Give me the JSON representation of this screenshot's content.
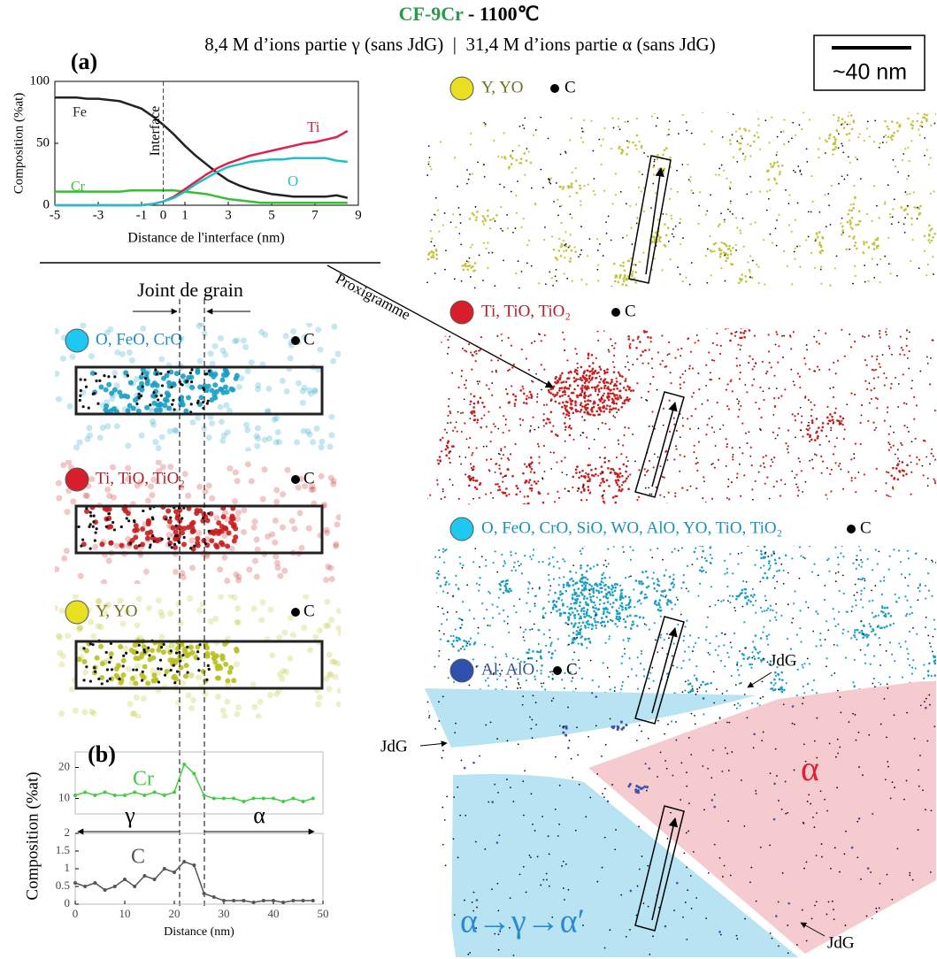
{
  "figure": {
    "title_sample": "CF-9Cr",
    "title_rest": "- 1100℃",
    "subtitle": "8,4 M d’ions partie γ (sans JdG)  |  31,4 M d’ions partie α (sans JdG)",
    "scale_bar": "~40 nm",
    "joint_label": "Joint de grain",
    "proxigramme": "Proxigramme",
    "maps": [
      {
        "legend": "Y, YO",
        "carbon": "C"
      },
      {
        "legend": "Ti, TiO, TiO₂",
        "carbon": "C"
      },
      {
        "legend": "O, FeO, CrO, SiO, WO, AlO, YO, TiO, TiO₂",
        "carbon": "C"
      },
      {
        "legend": "Al, AlO",
        "carbon": "C"
      }
    ],
    "insets": [
      {
        "legend": "O, FeO, CrO",
        "carbon": "C"
      },
      {
        "legend": "Ti, TiO, TiO₂",
        "carbon": "C"
      },
      {
        "legend": "Y, YO",
        "carbon": "C"
      }
    ],
    "phase_alpha": "α",
    "phase_transform": "α→γ→α′",
    "jdg": "JdG"
  },
  "chart_data": [
    {
      "type": "line",
      "panel": "(a)",
      "xlabel": "Distance de l'interface (nm)",
      "ylabel": "Composition (%at)",
      "annotation": "Interface",
      "xlim": [
        -5,
        9
      ],
      "ylim": [
        0,
        100
      ],
      "xticks": [
        -5,
        -3,
        -1,
        0,
        1,
        3,
        5,
        7,
        9
      ],
      "yticks": [
        0,
        50,
        100
      ],
      "x": [
        -5,
        -4.5,
        -4,
        -3.5,
        -3,
        -2.5,
        -2,
        -1.5,
        -1,
        -0.5,
        0,
        0.5,
        1,
        1.5,
        2,
        2.5,
        3,
        3.5,
        4,
        4.5,
        5,
        5.5,
        6,
        6.5,
        7,
        7.5,
        8,
        8.5
      ],
      "series": [
        {
          "name": "Fe",
          "color": "#222222",
          "values": [
            87,
            87,
            87,
            86,
            86,
            85,
            84,
            81,
            78,
            72,
            65,
            57,
            48,
            40,
            33,
            26,
            20,
            16,
            13,
            11,
            9,
            8,
            7,
            7,
            7,
            7,
            8,
            6
          ]
        },
        {
          "name": "Cr",
          "color": "#33c033",
          "values": [
            11,
            11,
            11,
            11,
            11,
            11,
            11,
            12,
            12,
            12,
            12,
            12,
            11,
            10,
            9,
            7,
            5,
            4,
            3,
            2,
            2,
            2,
            2,
            2,
            2,
            2,
            2,
            2
          ]
        },
        {
          "name": "Ti",
          "color": "#e0204a",
          "values": [
            0,
            0,
            0,
            0,
            0,
            0,
            0,
            0,
            0,
            1,
            3,
            7,
            13,
            19,
            25,
            30,
            34,
            37,
            40,
            42,
            44,
            46,
            48,
            50,
            51,
            53,
            55,
            60
          ]
        },
        {
          "name": "O",
          "color": "#20c0c8",
          "values": [
            0,
            0,
            0,
            0,
            0,
            0,
            0,
            0,
            0,
            1,
            3,
            6,
            11,
            17,
            22,
            27,
            31,
            33,
            35,
            36,
            37,
            37,
            38,
            38,
            38,
            38,
            36,
            35
          ]
        }
      ]
    },
    {
      "type": "line",
      "panel": "(b)",
      "ylabel": "Composition (%at)",
      "annotations": [
        "γ",
        "α"
      ],
      "xlim": [
        0,
        50
      ],
      "ylim": [
        5,
        25
      ],
      "yticks": [
        10,
        20
      ],
      "x": [
        0,
        2,
        4,
        6,
        8,
        10,
        12,
        14,
        16,
        18,
        20,
        22,
        24,
        26,
        28,
        30,
        32,
        34,
        36,
        38,
        40,
        42,
        44,
        46,
        48
      ],
      "series": [
        {
          "name": "Cr",
          "color": "#44cc44",
          "values": [
            11,
            12,
            11,
            12,
            11,
            11,
            12,
            11,
            12,
            11,
            12,
            21,
            18,
            11,
            10,
            10,
            10,
            9,
            10,
            10,
            10,
            9,
            10,
            9,
            10
          ]
        }
      ]
    },
    {
      "type": "line",
      "xlabel": "Distance (nm)",
      "xlim": [
        0,
        50
      ],
      "ylim": [
        0,
        2
      ],
      "xticks": [
        0,
        10,
        20,
        30,
        40,
        50
      ],
      "yticks": [
        0,
        0.5,
        1,
        1.5,
        2
      ],
      "x": [
        0,
        2,
        4,
        6,
        8,
        10,
        12,
        14,
        16,
        18,
        20,
        22,
        24,
        26,
        28,
        30,
        32,
        34,
        36,
        38,
        40,
        42,
        44,
        46,
        48
      ],
      "series": [
        {
          "name": "C",
          "color": "#555555",
          "values": [
            0.6,
            0.5,
            0.6,
            0.4,
            0.5,
            0.7,
            0.5,
            0.8,
            0.7,
            1.0,
            0.9,
            1.2,
            1.1,
            0.3,
            0.2,
            0.1,
            0.1,
            0.1,
            0.05,
            0.1,
            0.1,
            0.05,
            0.1,
            0.1,
            0.1
          ]
        }
      ]
    }
  ]
}
